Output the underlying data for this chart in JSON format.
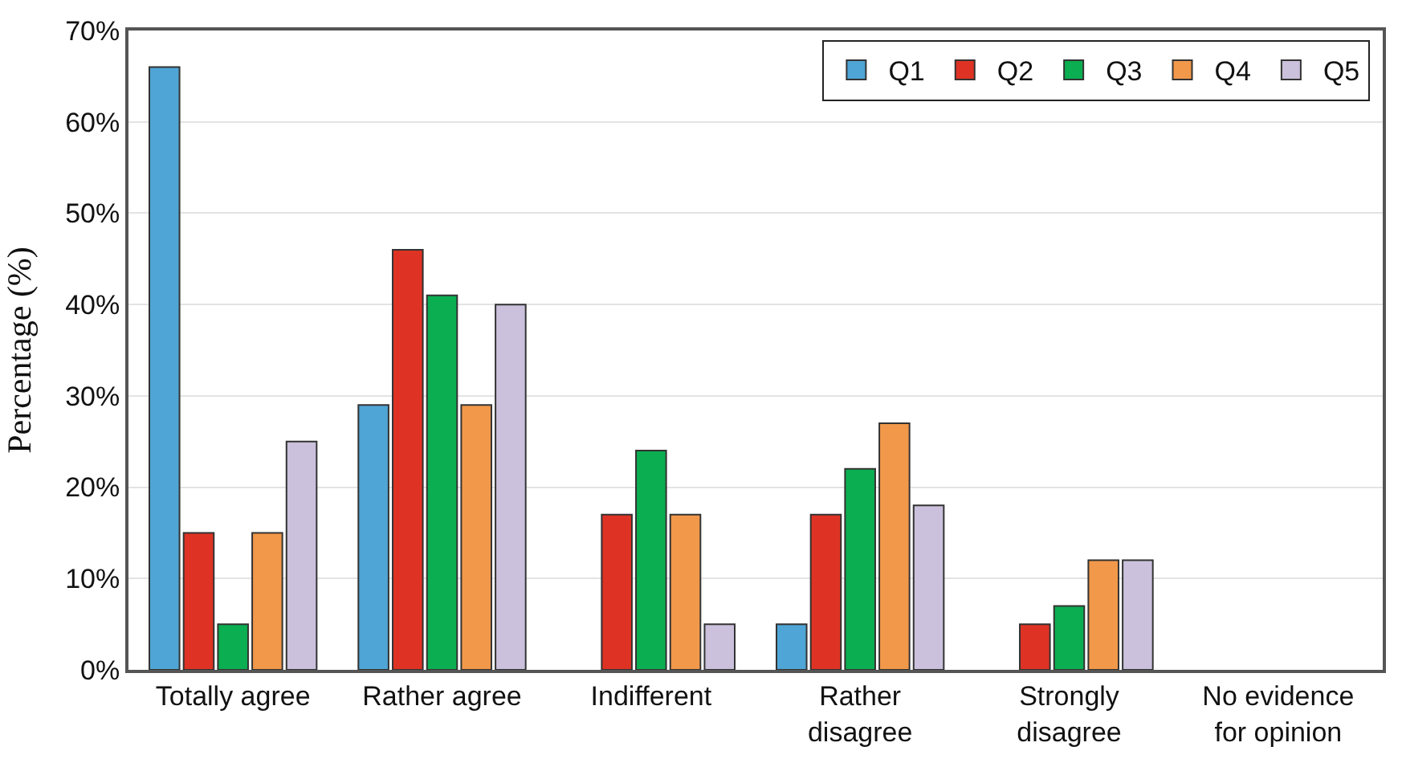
{
  "chart_data": {
    "type": "bar",
    "ylabel": "Percentage (%)",
    "categories": [
      "Totally agree",
      "Rather agree",
      "Indifferent",
      "Rather disagree",
      "Strongly disagree",
      "No evidence for opinion"
    ],
    "series": [
      {
        "name": "Q1",
        "color": "#4fa5d5",
        "values": [
          66,
          29,
          0,
          5,
          0,
          0
        ]
      },
      {
        "name": "Q2",
        "color": "#de3324",
        "values": [
          15,
          46,
          17,
          17,
          5,
          0
        ]
      },
      {
        "name": "Q3",
        "color": "#0bae50",
        "values": [
          5,
          41,
          24,
          22,
          7,
          0
        ]
      },
      {
        "name": "Q4",
        "color": "#f2984a",
        "values": [
          15,
          29,
          17,
          27,
          12,
          0
        ]
      },
      {
        "name": "Q5",
        "color": "#cbc1dc",
        "values": [
          25,
          40,
          5,
          18,
          12,
          0
        ]
      }
    ],
    "ylim": [
      0,
      70
    ],
    "yticks": [
      {
        "value": 0,
        "label": "0%"
      },
      {
        "value": 10,
        "label": "10%"
      },
      {
        "value": 20,
        "label": "20%"
      },
      {
        "value": 30,
        "label": "30%"
      },
      {
        "value": 40,
        "label": "40%"
      },
      {
        "value": 50,
        "label": "50%"
      },
      {
        "value": 60,
        "label": "60%"
      },
      {
        "value": 70,
        "label": "70%"
      }
    ],
    "grid": "y",
    "legend": "top right"
  }
}
